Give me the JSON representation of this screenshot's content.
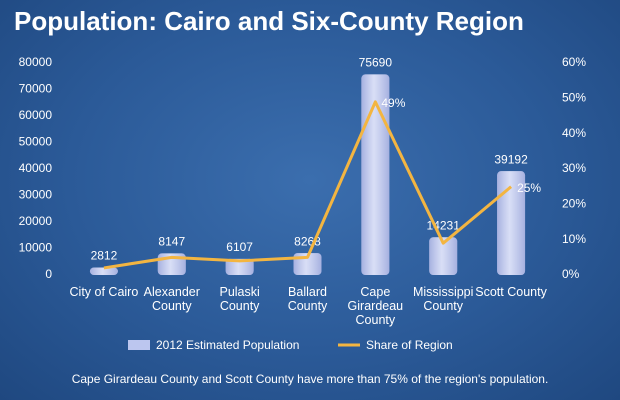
{
  "chart_data": {
    "type": "bar",
    "title": "Population: Cairo and Six-County Region",
    "footnote": "Cape Girardeau County and Scott County have more than 75% of the region's population.",
    "categories": [
      "City of Cairo",
      "Alexander County",
      "Pulaski County",
      "Ballard County",
      "Cape Girardeau County",
      "Mississippi County",
      "Scott County"
    ],
    "ylim": [
      0,
      80000
    ],
    "yticks": [
      0,
      10000,
      20000,
      30000,
      40000,
      50000,
      60000,
      70000,
      80000
    ],
    "y2lim": [
      0,
      60
    ],
    "y2ticks": [
      {
        "value": 0,
        "label": "0%"
      },
      {
        "value": 10,
        "label": "10%"
      },
      {
        "value": 20,
        "label": "20%"
      },
      {
        "value": 30,
        "label": "30%"
      },
      {
        "value": 40,
        "label": "40%"
      },
      {
        "value": 50,
        "label": "50%"
      },
      {
        "value": 60,
        "label": "60%"
      }
    ],
    "series": [
      {
        "name": "2012 Estimated Population",
        "type": "bar",
        "color": "#bcc6ef",
        "values": [
          2812,
          8147,
          6107,
          8268,
          75690,
          14231,
          39192
        ]
      },
      {
        "name": "Share of Region",
        "type": "line",
        "axis": "y2",
        "color": "#f3b541",
        "values": [
          2,
          5,
          4,
          5,
          49,
          9,
          25
        ],
        "value_labels": [
          null,
          null,
          null,
          null,
          "49%",
          null,
          "25%"
        ]
      }
    ]
  }
}
